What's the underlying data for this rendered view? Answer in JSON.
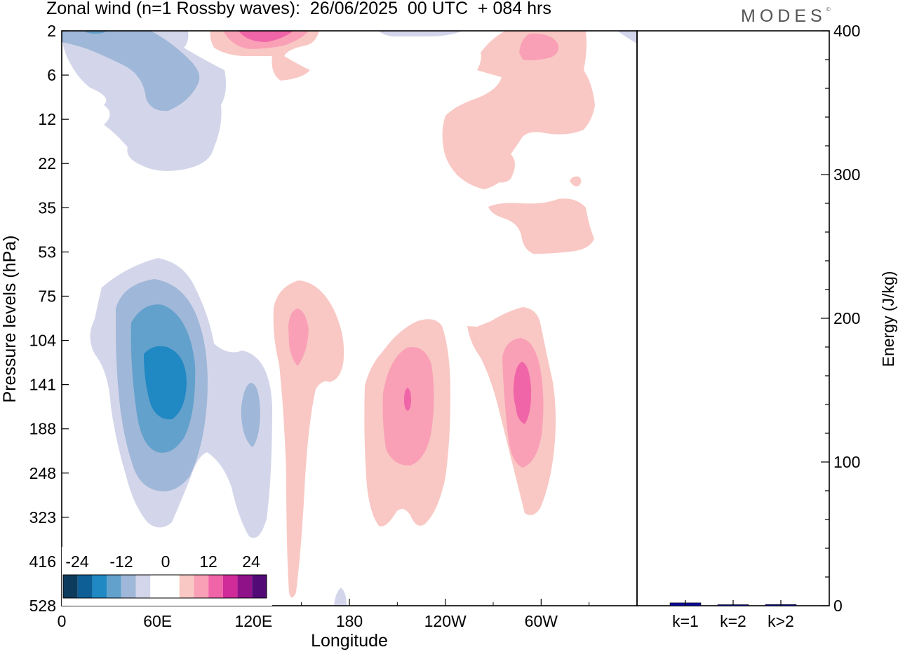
{
  "title": "Zonal wind (n=1 Rossby waves):  26/06/2025  00 UTC  + 084 hrs",
  "brand": "MODES",
  "brand_mark": "©",
  "chart_data": [
    {
      "type": "heatmap",
      "xlabel": "Longitude",
      "ylabel": "Pressure levels (hPa)",
      "x_ticks": [
        "0",
        "60E",
        "120E",
        "180",
        "120W",
        "60W"
      ],
      "x_tick_lon": [
        0,
        60,
        120,
        180,
        240,
        300
      ],
      "xlim": [
        0,
        360
      ],
      "y_ticks": [
        "2",
        "6",
        "12",
        "22",
        "35",
        "53",
        "75",
        "104",
        "141",
        "188",
        "248",
        "323",
        "416",
        "528"
      ],
      "y_ticks_order": "top-to-bottom",
      "colorbar": {
        "tick_labels": [
          "-24",
          "-12",
          "0",
          "12",
          "24"
        ],
        "colors": [
          "#0d3b5c",
          "#0e5f96",
          "#2088c2",
          "#62a1cc",
          "#9fb7d8",
          "#d3d6ea",
          "#ffffff",
          "#ffffff",
          "#f9c8c4",
          "#f9a0b6",
          "#f065a8",
          "#cf2b99",
          "#8f1288",
          "#520a76"
        ]
      },
      "anomalies": [
        {
          "lon": 33,
          "level": "6",
          "value": -8,
          "sign": "negative"
        },
        {
          "lon": 62,
          "level": "141",
          "value": -20,
          "sign": "negative"
        },
        {
          "lon": 118,
          "level": "188",
          "value": -8,
          "sign": "negative"
        },
        {
          "lon": 132,
          "level": "2",
          "value": 12,
          "sign": "positive"
        },
        {
          "lon": 147,
          "level": "104",
          "value": 8,
          "sign": "positive"
        },
        {
          "lon": 215,
          "level": "141",
          "value": 14,
          "sign": "positive"
        },
        {
          "lon": 290,
          "level": "141",
          "value": 14,
          "sign": "positive"
        },
        {
          "lon": 300,
          "level": "6",
          "value": 8,
          "sign": "positive"
        },
        {
          "lon": 285,
          "level": "22",
          "value": 4,
          "sign": "positive"
        },
        {
          "lon": 298,
          "level": "53",
          "value": 4,
          "sign": "positive"
        }
      ]
    },
    {
      "type": "bar",
      "categories": [
        "k=1",
        "k=2",
        "k>2"
      ],
      "values": [
        2,
        0.5,
        0.8
      ],
      "ylabel": "Energy (J/kg)",
      "ylim": [
        0,
        400
      ],
      "y_ticks": [
        "0",
        "100",
        "200",
        "300",
        "400"
      ],
      "colors": [
        "#0a0a9a",
        "#0a0a9a",
        "#0a0a9a"
      ]
    }
  ]
}
